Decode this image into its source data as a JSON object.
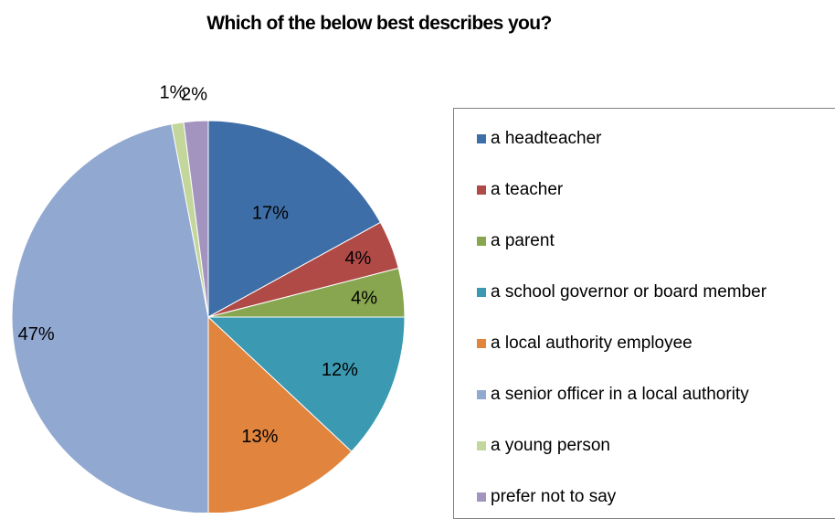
{
  "chart_data": {
    "type": "pie",
    "title": "Which of the below best describes you?",
    "legend_position": "right",
    "start_angle_deg": 0,
    "direction": "clockwise",
    "slices": [
      {
        "label": "a headteacher",
        "value": 17,
        "display": "17%",
        "color": "#3E6EA7"
      },
      {
        "label": "a teacher",
        "value": 4,
        "display": "4%",
        "color": "#B04A47"
      },
      {
        "label": "a parent",
        "value": 4,
        "display": "4%",
        "color": "#87A64F"
      },
      {
        "label": "a school governor or board member",
        "value": 12,
        "display": "12%",
        "color": "#3B9AB2"
      },
      {
        "label": "a local authority employee",
        "value": 13,
        "display": "13%",
        "color": "#E0843E"
      },
      {
        "label": "a senior officer in a local authority",
        "value": 47,
        "display": "47%",
        "color": "#91A8D0"
      },
      {
        "label": "a young person",
        "value": 1,
        "display": "1%",
        "color": "#C3D69B"
      },
      {
        "label": "prefer not to say",
        "value": 2,
        "display": "2%",
        "color": "#A393BF"
      }
    ]
  }
}
